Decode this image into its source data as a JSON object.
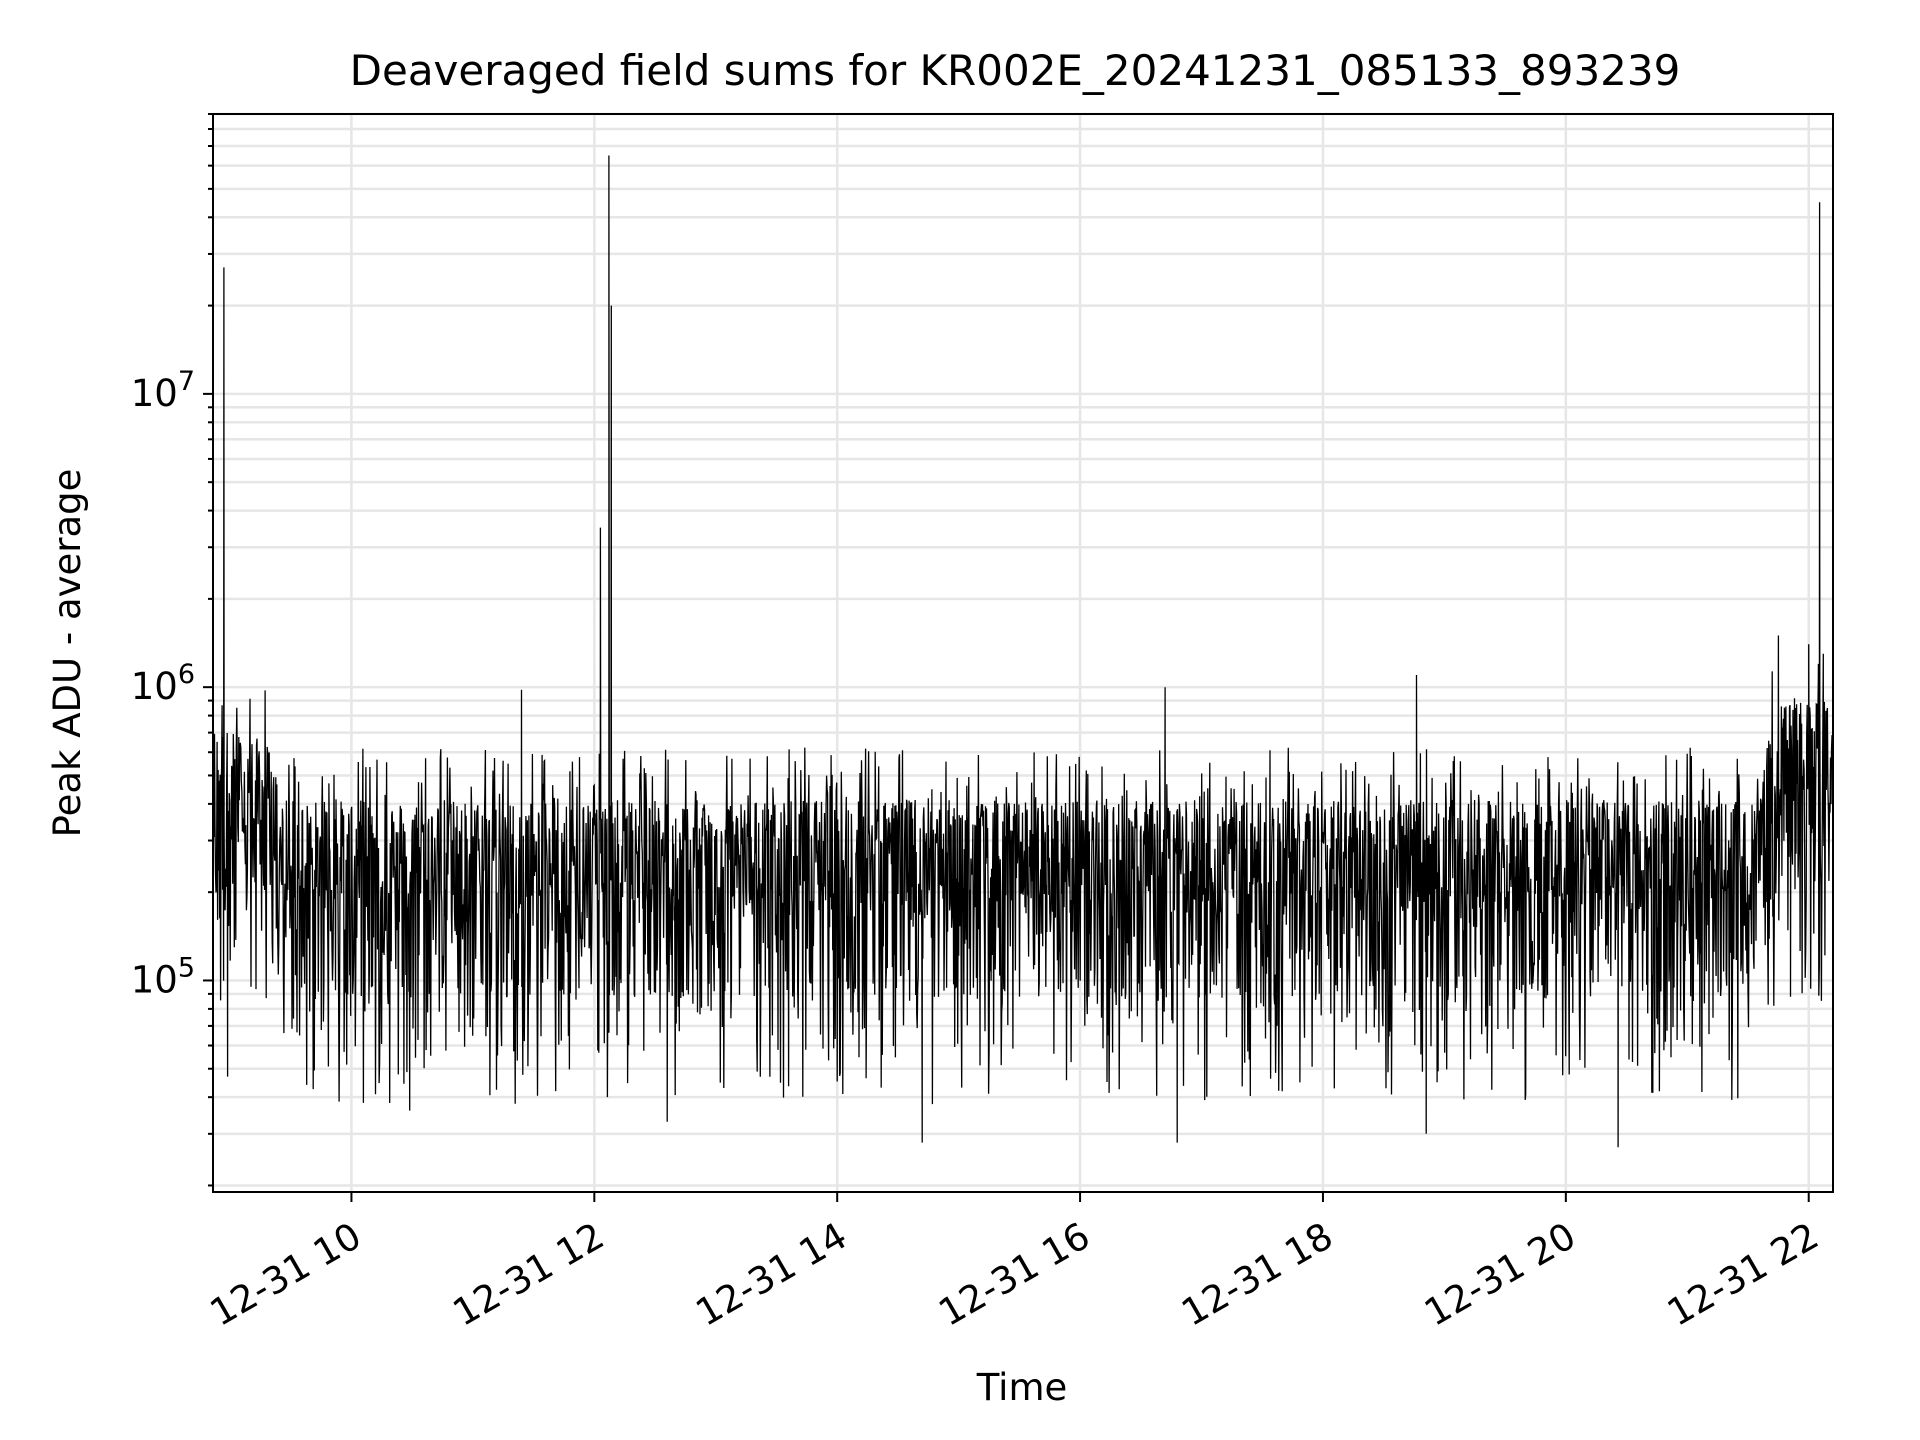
{
  "chart_data": {
    "type": "line",
    "title": "Deaveraged field sums for KR002E_20241231_085133_893239",
    "xlabel": "Time",
    "ylabel": "Peak ADU - average",
    "yscale": "log",
    "ylim": [
      19000,
      90000000
    ],
    "xlim_hours": [
      8.86,
      22.2
    ],
    "grid": true,
    "x_ticks": [
      {
        "hour": 10,
        "label": "12-31 10"
      },
      {
        "hour": 12,
        "label": "12-31 12"
      },
      {
        "hour": 14,
        "label": "12-31 14"
      },
      {
        "hour": 16,
        "label": "12-31 16"
      },
      {
        "hour": 18,
        "label": "12-31 18"
      },
      {
        "hour": 20,
        "label": "12-31 20"
      },
      {
        "hour": 22,
        "label": "12-31 22"
      }
    ],
    "y_ticks": [
      {
        "value": 100000,
        "base": "10",
        "exp": "5"
      },
      {
        "value": 1000000,
        "base": "10",
        "exp": "6"
      },
      {
        "value": 10000000,
        "base": "10",
        "exp": "7"
      }
    ],
    "series": [
      {
        "name": "deaveraged field sums",
        "color": "#000000",
        "baseline_segments": [
          {
            "t": 8.86,
            "level": 450000
          },
          {
            "t": 9.3,
            "level": 400000
          },
          {
            "t": 9.45,
            "level": 250000
          },
          {
            "t": 21.6,
            "level": 250000
          },
          {
            "t": 21.7,
            "level": 520000
          },
          {
            "t": 22.2,
            "level": 560000
          }
        ],
        "spikes": [
          {
            "t": 8.95,
            "value": 27000000
          },
          {
            "t": 12.05,
            "value": 3500000
          },
          {
            "t": 12.12,
            "value": 65000000
          },
          {
            "t": 12.14,
            "value": 20000000
          },
          {
            "t": 11.4,
            "value": 980000
          },
          {
            "t": 16.7,
            "value": 1000000
          },
          {
            "t": 18.77,
            "value": 1100000
          },
          {
            "t": 21.75,
            "value": 1500000
          },
          {
            "t": 22.0,
            "value": 1400000
          },
          {
            "t": 22.08,
            "value": 1200000
          },
          {
            "t": 22.12,
            "value": 1300000
          },
          {
            "t": 22.09,
            "value": 45000000
          }
        ],
        "dips": [
          {
            "t": 8.98,
            "value": 47000
          },
          {
            "t": 14.7,
            "value": 28000
          },
          {
            "t": 16.8,
            "value": 28000
          },
          {
            "t": 20.43,
            "value": 27000
          },
          {
            "t": 10.48,
            "value": 36000
          },
          {
            "t": 12.6,
            "value": 33000
          },
          {
            "t": 18.85,
            "value": 30000
          },
          {
            "t": 21.85,
            "value": 88000
          }
        ]
      }
    ]
  }
}
